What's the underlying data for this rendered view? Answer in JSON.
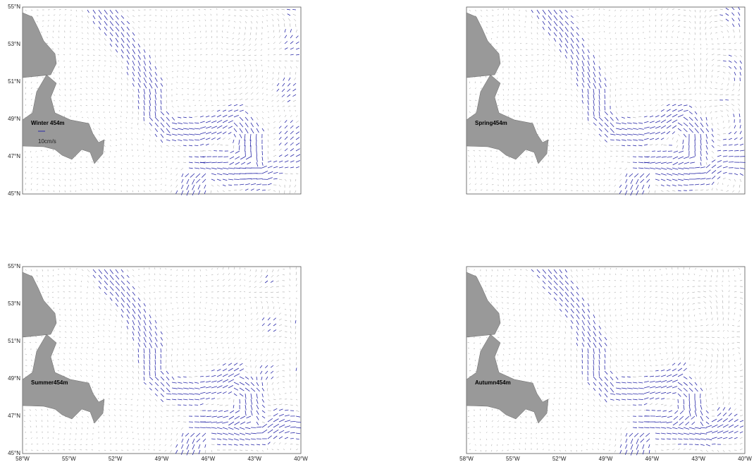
{
  "lat_labels": [
    "55°N",
    "53°N",
    "51°N",
    "49°N",
    "47°N",
    "45°N"
  ],
  "lon_labels": [
    "58°W",
    "55°W",
    "52°W",
    "49°W",
    "46°W",
    "43°W",
    "40°W"
  ],
  "panels": [
    {
      "label": "Winter 454m",
      "scale_label": "10cm/s"
    },
    {
      "label": "Spring454m"
    },
    {
      "label": "Summer454m"
    },
    {
      "label": "Autumn454m"
    }
  ]
}
